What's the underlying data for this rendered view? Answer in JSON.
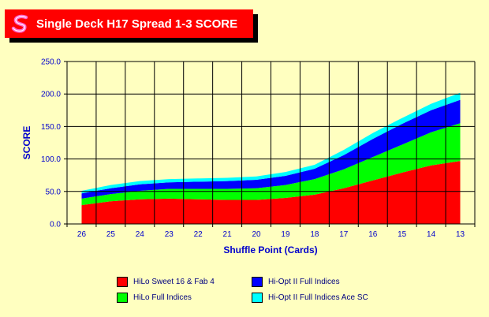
{
  "title": "Single Deck H17 Spread 1-3 SCORE",
  "chart_data": {
    "type": "area",
    "stacked": true,
    "categories": [
      "26",
      "25",
      "24",
      "23",
      "22",
      "21",
      "20",
      "19",
      "18",
      "17",
      "16",
      "15",
      "14",
      "13"
    ],
    "xlabel": "Shuffle Point (Cards)",
    "ylabel": "SCORE",
    "ylim": [
      0,
      250
    ],
    "yticks": [
      "0.0",
      "50.0",
      "100.0",
      "150.0",
      "200.0",
      "250.0"
    ],
    "grid": true,
    "legend": "bottom",
    "series": [
      {
        "name": "HiLo Sweet 16 & Fab 4",
        "color": "#ff0000",
        "values": [
          29,
          35,
          38,
          39,
          38,
          37,
          37,
          40,
          45,
          55,
          67,
          79,
          90,
          97
        ]
      },
      {
        "name": "HiLo Full Indices",
        "color": "#00ff00",
        "values": [
          10,
          11,
          13,
          15,
          16,
          17,
          18,
          20,
          24,
          29,
          36,
          43,
          51,
          58
        ]
      },
      {
        "name": "Hi-Opt II Full Indices",
        "color": "#0000ff",
        "values": [
          8,
          9,
          10,
          10,
          11,
          12,
          13,
          14,
          16,
          22,
          28,
          32,
          34,
          36
        ]
      },
      {
        "name": "Hi-Opt II Full Indices Ace SC",
        "color": "#00ffff",
        "values": [
          4,
          5,
          5,
          5,
          5,
          5,
          5,
          6,
          6,
          8,
          9,
          9,
          10,
          11
        ]
      }
    ]
  }
}
